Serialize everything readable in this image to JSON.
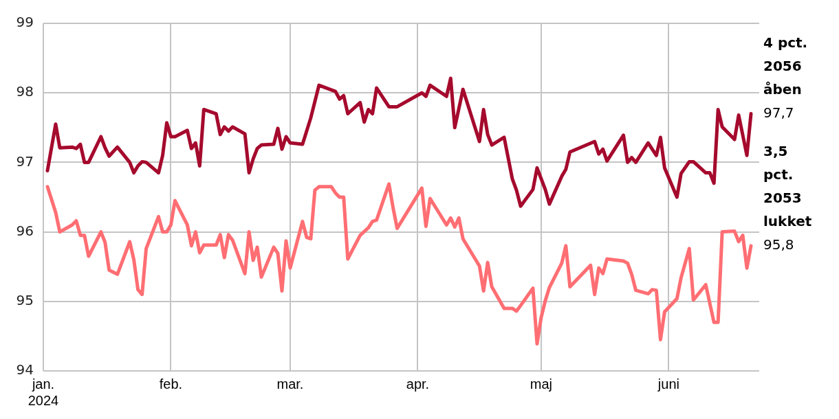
{
  "chart_data": {
    "type": "line",
    "xlim": [
      "2024-01-01",
      "2024-06-23"
    ],
    "xticks": [
      {
        "value": "2024-01-01",
        "label": "jan. 2024"
      },
      {
        "value": "2024-02-01",
        "label": "feb."
      },
      {
        "value": "2024-03-01",
        "label": "mar."
      },
      {
        "value": "2024-04-01",
        "label": "apr."
      },
      {
        "value": "2024-05-01",
        "label": "maj"
      },
      {
        "value": "2024-06-01",
        "label": "juni"
      }
    ],
    "ylim": [
      94,
      99
    ],
    "yticks": [
      94,
      95,
      96,
      97,
      98,
      99
    ],
    "grid": true,
    "legend": false,
    "series": [
      {
        "name": "4 pct. 2056 åben",
        "color": "#a50a2d",
        "x": [
          "2024-01-02",
          "2024-01-04",
          "2024-01-05",
          "2024-01-08",
          "2024-01-09",
          "2024-01-10",
          "2024-01-11",
          "2024-01-12",
          "2024-01-15",
          "2024-01-16",
          "2024-01-17",
          "2024-01-19",
          "2024-01-22",
          "2024-01-23",
          "2024-01-24",
          "2024-01-25",
          "2024-01-26",
          "2024-01-29",
          "2024-01-30",
          "2024-01-31",
          "2024-02-01",
          "2024-02-02",
          "2024-02-05",
          "2024-02-06",
          "2024-02-07",
          "2024-02-08",
          "2024-02-09",
          "2024-02-12",
          "2024-02-13",
          "2024-02-14",
          "2024-02-15",
          "2024-02-16",
          "2024-02-19",
          "2024-02-20",
          "2024-02-21",
          "2024-02-22",
          "2024-02-23",
          "2024-02-26",
          "2024-02-27",
          "2024-02-28",
          "2024-02-29",
          "2024-03-01",
          "2024-03-04",
          "2024-03-06",
          "2024-03-08",
          "2024-03-12",
          "2024-03-13",
          "2024-03-14",
          "2024-03-15",
          "2024-03-18",
          "2024-03-19",
          "2024-03-20",
          "2024-03-21",
          "2024-03-22",
          "2024-03-25",
          "2024-03-27",
          "2024-04-02",
          "2024-04-03",
          "2024-04-04",
          "2024-04-08",
          "2024-04-09",
          "2024-04-10",
          "2024-04-12",
          "2024-04-16",
          "2024-04-17",
          "2024-04-18",
          "2024-04-19",
          "2024-04-22",
          "2024-04-24",
          "2024-04-25",
          "2024-04-26",
          "2024-04-29",
          "2024-04-30",
          "2024-05-02",
          "2024-05-03",
          "2024-05-06",
          "2024-05-07",
          "2024-05-08",
          "2024-05-14",
          "2024-05-15",
          "2024-05-16",
          "2024-05-17",
          "2024-05-21",
          "2024-05-22",
          "2024-05-23",
          "2024-05-24",
          "2024-05-27",
          "2024-05-29",
          "2024-05-30",
          "2024-05-31",
          "2024-06-03",
          "2024-06-04",
          "2024-06-06",
          "2024-06-07",
          "2024-06-10",
          "2024-06-11",
          "2024-06-12",
          "2024-06-13",
          "2024-06-14",
          "2024-06-17",
          "2024-06-18",
          "2024-06-20",
          "2024-06-21"
        ],
        "values": [
          96.88,
          97.55,
          97.21,
          97.22,
          97.2,
          97.26,
          97.0,
          97.0,
          97.37,
          97.21,
          97.09,
          97.22,
          97.0,
          96.85,
          96.95,
          97.01,
          97.0,
          96.85,
          97.1,
          97.57,
          97.37,
          97.37,
          97.46,
          97.2,
          97.28,
          96.95,
          97.76,
          97.7,
          97.4,
          97.51,
          97.45,
          97.51,
          97.41,
          96.85,
          97.05,
          97.2,
          97.25,
          97.26,
          97.49,
          97.19,
          97.37,
          97.28,
          97.26,
          97.64,
          98.11,
          98.02,
          97.91,
          97.96,
          97.7,
          97.86,
          97.58,
          97.76,
          97.7,
          98.07,
          97.8,
          97.8,
          98.0,
          97.95,
          98.11,
          97.95,
          98.21,
          97.5,
          98.05,
          97.3,
          97.76,
          97.4,
          97.25,
          97.36,
          96.76,
          96.6,
          96.37,
          96.61,
          96.92,
          96.61,
          96.4,
          96.8,
          96.9,
          97.15,
          97.3,
          97.12,
          97.19,
          97.02,
          97.39,
          97.0,
          97.07,
          97.0,
          97.28,
          97.1,
          97.36,
          96.92,
          96.5,
          96.84,
          97.01,
          97.01,
          96.85,
          96.85,
          96.7,
          97.76,
          97.51,
          97.33,
          97.68,
          97.1,
          97.7
        ],
        "value_labels": [
          null,
          null,
          null,
          null,
          null,
          null,
          null,
          null,
          null,
          null,
          null,
          null,
          null,
          null,
          null,
          null,
          null,
          null,
          null,
          null,
          null,
          null,
          null,
          null,
          null,
          null,
          null,
          null,
          null,
          null,
          null,
          null,
          null,
          null,
          null,
          null,
          null,
          null,
          null,
          null,
          null,
          null,
          null,
          null,
          null,
          null,
          null,
          null,
          null,
          null,
          null,
          null,
          null,
          null,
          null,
          null,
          null,
          null,
          null,
          null,
          null,
          null,
          null,
          null,
          null,
          null,
          null,
          null,
          null,
          null,
          null,
          null,
          null,
          null,
          null,
          null,
          null,
          null,
          null,
          null,
          null,
          null,
          null,
          null,
          null,
          null,
          null,
          null,
          null,
          null,
          null,
          null,
          null,
          null,
          null,
          null,
          null,
          null,
          null,
          null,
          null,
          null,
          "97,7"
        ]
      },
      {
        "name": "3,5 pct. 2053 lukket",
        "color": "#ff6e73",
        "x": [
          "2024-01-02",
          "2024-01-04",
          "2024-01-05",
          "2024-01-08",
          "2024-01-09",
          "2024-01-10",
          "2024-01-11",
          "2024-01-12",
          "2024-01-15",
          "2024-01-16",
          "2024-01-17",
          "2024-01-19",
          "2024-01-22",
          "2024-01-23",
          "2024-01-24",
          "2024-01-25",
          "2024-01-26",
          "2024-01-29",
          "2024-01-30",
          "2024-01-31",
          "2024-02-01",
          "2024-02-02",
          "2024-02-05",
          "2024-02-06",
          "2024-02-07",
          "2024-02-08",
          "2024-02-09",
          "2024-02-12",
          "2024-02-13",
          "2024-02-14",
          "2024-02-15",
          "2024-02-16",
          "2024-02-19",
          "2024-02-20",
          "2024-02-21",
          "2024-02-22",
          "2024-02-23",
          "2024-02-26",
          "2024-02-27",
          "2024-02-28",
          "2024-02-29",
          "2024-03-01",
          "2024-03-04",
          "2024-03-05",
          "2024-03-06",
          "2024-03-07",
          "2024-03-08",
          "2024-03-11",
          "2024-03-12",
          "2024-03-13",
          "2024-03-14",
          "2024-03-15",
          "2024-03-18",
          "2024-03-20",
          "2024-03-21",
          "2024-03-22",
          "2024-03-25",
          "2024-03-26",
          "2024-03-27",
          "2024-04-02",
          "2024-04-03",
          "2024-04-04",
          "2024-04-08",
          "2024-04-09",
          "2024-04-10",
          "2024-04-11",
          "2024-04-12",
          "2024-04-16",
          "2024-04-17",
          "2024-04-18",
          "2024-04-19",
          "2024-04-22",
          "2024-04-24",
          "2024-04-25",
          "2024-04-26",
          "2024-04-29",
          "2024-04-30",
          "2024-05-01",
          "2024-05-02",
          "2024-05-03",
          "2024-05-06",
          "2024-05-07",
          "2024-05-08",
          "2024-05-13",
          "2024-05-14",
          "2024-05-15",
          "2024-05-16",
          "2024-05-17",
          "2024-05-21",
          "2024-05-22",
          "2024-05-23",
          "2024-05-24",
          "2024-05-27",
          "2024-05-28",
          "2024-05-29",
          "2024-05-30",
          "2024-05-31",
          "2024-06-03",
          "2024-06-04",
          "2024-06-06",
          "2024-06-07",
          "2024-06-10",
          "2024-06-12",
          "2024-06-13",
          "2024-06-14",
          "2024-06-17",
          "2024-06-18",
          "2024-06-19",
          "2024-06-20",
          "2024-06-21"
        ],
        "values": [
          96.65,
          96.28,
          96.0,
          96.1,
          96.16,
          95.95,
          95.95,
          95.65,
          96.0,
          95.85,
          95.45,
          95.39,
          95.86,
          95.6,
          95.17,
          95.1,
          95.76,
          96.22,
          96.0,
          96.0,
          96.1,
          96.45,
          96.1,
          95.8,
          96.0,
          95.7,
          95.81,
          95.81,
          95.96,
          95.63,
          95.96,
          95.88,
          95.4,
          96.0,
          95.59,
          95.78,
          95.35,
          95.78,
          95.69,
          95.15,
          95.87,
          95.48,
          96.15,
          95.92,
          95.9,
          96.6,
          96.65,
          96.65,
          96.56,
          96.5,
          96.5,
          95.61,
          95.95,
          96.06,
          96.15,
          96.17,
          96.69,
          96.35,
          96.05,
          96.63,
          96.08,
          96.48,
          96.1,
          96.2,
          96.07,
          96.2,
          95.9,
          95.51,
          95.15,
          95.56,
          95.21,
          94.9,
          94.9,
          94.86,
          94.94,
          95.19,
          94.39,
          94.77,
          95.01,
          95.2,
          95.55,
          95.8,
          95.21,
          95.52,
          95.1,
          95.48,
          95.4,
          95.61,
          95.58,
          95.55,
          95.39,
          95.16,
          95.11,
          95.17,
          95.16,
          94.45,
          94.85,
          95.04,
          95.34,
          95.76,
          95.02,
          95.24,
          94.7,
          94.7,
          96.0,
          96.01,
          95.86,
          95.95,
          95.48,
          95.8
        ],
        "value_labels": [
          null,
          null,
          null,
          null,
          null,
          null,
          null,
          null,
          null,
          null,
          null,
          null,
          null,
          null,
          null,
          null,
          null,
          null,
          null,
          null,
          null,
          null,
          null,
          null,
          null,
          null,
          null,
          null,
          null,
          null,
          null,
          null,
          null,
          null,
          null,
          null,
          null,
          null,
          null,
          null,
          null,
          null,
          null,
          null,
          null,
          null,
          null,
          null,
          null,
          null,
          null,
          null,
          null,
          null,
          null,
          null,
          null,
          null,
          null,
          null,
          null,
          null,
          null,
          null,
          null,
          null,
          null,
          null,
          null,
          null,
          null,
          null,
          null,
          null,
          null,
          null,
          null,
          null,
          null,
          null,
          null,
          null,
          null,
          null,
          null,
          null,
          null,
          null,
          null,
          null,
          null,
          null,
          null,
          null,
          null,
          null,
          null,
          null,
          null,
          null,
          null,
          null,
          null,
          null,
          null,
          null,
          null,
          null,
          null,
          "95,8"
        ]
      }
    ]
  }
}
